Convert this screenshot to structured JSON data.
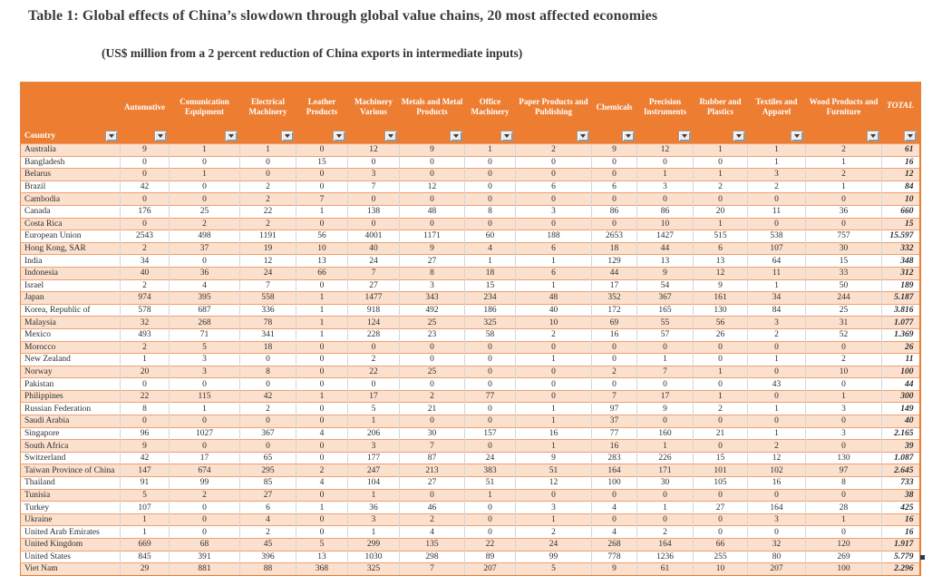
{
  "page": {
    "title": "Table 1: Global effects of China’s slowdown through global value chains, 20 most affected economies",
    "subtitle": "(US$ million from a 2 percent reduction of China exports in intermediate inputs)"
  },
  "colors": {
    "header_bg": "#ED7D31",
    "header_text": "#FFFFFF",
    "row_stripe": "#FBE0CD",
    "row_plain": "#FFFFFF",
    "grid_horizontal": "#EFA071",
    "grid_vertical": "#D6D6D6",
    "selection_handle": "#24355C"
  },
  "icons": {
    "filter_dropdown": "autofilter-arrow-down"
  },
  "chart_data": {
    "type": "table",
    "title": "Table 1: Global effects of China’s slowdown through global value chains, 20 most affected economies",
    "subtitle": "(US$ million from a 2 percent reduction of China exports in intermediate inputs)",
    "columns": [
      "Country",
      "Automotive",
      "Comunication Equipment",
      "Electrical Machinery",
      "Leather Products",
      "Machinery Various",
      "Metals and Metal Products",
      "Office Machinery",
      "Paper Products and Publishing",
      "Chemicals",
      "Precision Instruments",
      "Rubber and Plastics",
      "Textiles and Apparel",
      "Wood Products and Furniture",
      "TOTAL"
    ],
    "rows": [
      [
        "Australia",
        9,
        1,
        1,
        0,
        12,
        9,
        1,
        2,
        9,
        12,
        1,
        1,
        2,
        "61"
      ],
      [
        "Bangladesh",
        0,
        0,
        0,
        15,
        0,
        0,
        0,
        0,
        0,
        0,
        0,
        1,
        1,
        "16"
      ],
      [
        "Belarus",
        0,
        1,
        0,
        0,
        3,
        0,
        0,
        0,
        0,
        1,
        1,
        3,
        2,
        "12"
      ],
      [
        "Brazil",
        42,
        0,
        2,
        0,
        7,
        12,
        0,
        6,
        6,
        3,
        2,
        2,
        1,
        "84"
      ],
      [
        "Cambodia",
        0,
        0,
        2,
        7,
        0,
        0,
        0,
        0,
        0,
        0,
        0,
        0,
        0,
        "10"
      ],
      [
        "Canada",
        176,
        25,
        22,
        1,
        138,
        48,
        8,
        3,
        86,
        86,
        20,
        11,
        36,
        "660"
      ],
      [
        "Costa Rica",
        0,
        2,
        2,
        0,
        0,
        0,
        0,
        0,
        0,
        10,
        1,
        0,
        0,
        "15"
      ],
      [
        "European Union",
        2543,
        498,
        1191,
        56,
        4001,
        1171,
        60,
        188,
        2653,
        1427,
        515,
        538,
        757,
        "15.597"
      ],
      [
        "Hong Kong, SAR",
        2,
        37,
        19,
        10,
        40,
        9,
        4,
        6,
        18,
        44,
        6,
        107,
        30,
        "332"
      ],
      [
        "India",
        34,
        0,
        12,
        13,
        24,
        27,
        1,
        1,
        129,
        13,
        13,
        64,
        15,
        "348"
      ],
      [
        "Indonesia",
        40,
        36,
        24,
        66,
        7,
        8,
        18,
        6,
        44,
        9,
        12,
        11,
        33,
        "312"
      ],
      [
        "Israel",
        2,
        4,
        7,
        0,
        27,
        3,
        15,
        1,
        17,
        54,
        9,
        1,
        50,
        "189"
      ],
      [
        "Japan",
        974,
        395,
        558,
        1,
        1477,
        343,
        234,
        48,
        352,
        367,
        161,
        34,
        244,
        "5.187"
      ],
      [
        "Korea, Republic of",
        578,
        687,
        336,
        1,
        918,
        492,
        186,
        40,
        172,
        165,
        130,
        84,
        25,
        "3.816"
      ],
      [
        "Malaysia",
        32,
        268,
        78,
        1,
        124,
        25,
        325,
        10,
        69,
        55,
        56,
        3,
        31,
        "1.077"
      ],
      [
        "Mexico",
        493,
        71,
        341,
        1,
        228,
        23,
        58,
        2,
        16,
        57,
        26,
        2,
        52,
        "1.369"
      ],
      [
        "Morocco",
        2,
        5,
        18,
        0,
        0,
        0,
        0,
        0,
        0,
        0,
        0,
        0,
        0,
        "26"
      ],
      [
        "New Zealand",
        1,
        3,
        0,
        0,
        2,
        0,
        0,
        1,
        0,
        1,
        0,
        1,
        2,
        "11"
      ],
      [
        "Norway",
        20,
        3,
        8,
        0,
        22,
        25,
        0,
        0,
        2,
        7,
        1,
        0,
        10,
        "100"
      ],
      [
        "Pakistan",
        0,
        0,
        0,
        0,
        0,
        0,
        0,
        0,
        0,
        0,
        0,
        43,
        0,
        "44"
      ],
      [
        "Philippines",
        22,
        115,
        42,
        1,
        17,
        2,
        77,
        0,
        7,
        17,
        1,
        0,
        1,
        "300"
      ],
      [
        "Russian Federation",
        8,
        1,
        2,
        0,
        5,
        21,
        0,
        1,
        97,
        9,
        2,
        1,
        3,
        "149"
      ],
      [
        "Saudi Arabia",
        0,
        0,
        0,
        0,
        1,
        0,
        0,
        1,
        37,
        0,
        0,
        0,
        0,
        "40"
      ],
      [
        "Singapore",
        96,
        1027,
        367,
        4,
        206,
        30,
        157,
        16,
        77,
        160,
        21,
        1,
        3,
        "2.165"
      ],
      [
        "South Africa",
        9,
        0,
        0,
        0,
        3,
        7,
        0,
        1,
        16,
        1,
        0,
        2,
        0,
        "39"
      ],
      [
        "Switzerland",
        42,
        17,
        65,
        0,
        177,
        87,
        24,
        9,
        283,
        226,
        15,
        12,
        130,
        "1.087"
      ],
      [
        "Taiwan Province of China",
        147,
        674,
        295,
        2,
        247,
        213,
        383,
        51,
        164,
        171,
        101,
        102,
        97,
        "2.645"
      ],
      [
        "Thailand",
        91,
        99,
        85,
        4,
        104,
        27,
        51,
        12,
        100,
        30,
        105,
        16,
        8,
        "733"
      ],
      [
        "Tunisia",
        5,
        2,
        27,
        0,
        1,
        0,
        1,
        0,
        0,
        0,
        0,
        0,
        0,
        "38"
      ],
      [
        "Turkey",
        107,
        0,
        6,
        1,
        36,
        46,
        0,
        3,
        4,
        1,
        27,
        164,
        28,
        "425"
      ],
      [
        "Ukraine",
        1,
        0,
        4,
        0,
        3,
        2,
        0,
        1,
        0,
        0,
        0,
        3,
        1,
        "16"
      ],
      [
        "United Arab Emirates",
        1,
        0,
        2,
        0,
        1,
        4,
        0,
        2,
        4,
        2,
        0,
        0,
        0,
        "16"
      ],
      [
        "United Kingdom",
        669,
        68,
        45,
        5,
        299,
        135,
        22,
        24,
        268,
        164,
        66,
        32,
        120,
        "1.917"
      ],
      [
        "United States",
        845,
        391,
        396,
        13,
        1030,
        298,
        89,
        99,
        778,
        1236,
        255,
        80,
        269,
        "5.779"
      ],
      [
        "Viet Nam",
        29,
        881,
        88,
        368,
        325,
        7,
        207,
        5,
        9,
        61,
        10,
        207,
        100,
        "2.296"
      ]
    ]
  }
}
